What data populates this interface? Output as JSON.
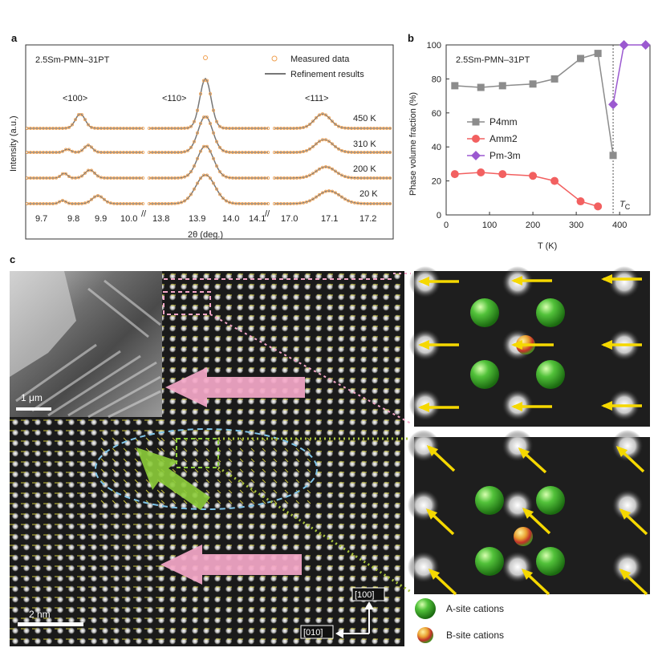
{
  "figure": {
    "panel_a": {
      "letter": "a",
      "sample": "2.5Sm-PMN–31PT",
      "legend_measured": "Measured data",
      "legend_refine": "Refinement results",
      "peaks": [
        "<100>",
        "<110>",
        "<111>"
      ],
      "temps": [
        "450 K",
        "310 K",
        "200 K",
        "20 K"
      ],
      "ylabel": "Intensity (a.u.)",
      "xlabel": "2θ (deg.)",
      "xticks_1": [
        "9.7",
        "9.8",
        "9.9",
        "10.0"
      ],
      "xticks_2": [
        "13.8",
        "13.9",
        "14.0",
        "14.1"
      ],
      "xticks_3": [
        "17.0",
        "17.1",
        "17.2"
      ]
    },
    "panel_b": {
      "letter": "b",
      "sample": "2.5Sm-PMN–31PT",
      "tc_label": "T",
      "tc_sub": "C"
    },
    "panel_c": {
      "letter": "c",
      "scale_inset": "1 μm",
      "scale_main": "2 nm",
      "dir_100": "[100]",
      "dir_010": "[010]",
      "legend_a": "A-site cations",
      "legend_b": "B-site cations"
    }
  },
  "chart_data": {
    "type": "line",
    "title": "",
    "xlabel": "T (K)",
    "ylabel": "Phase volume fraction (%)",
    "xlim": [
      0,
      470
    ],
    "ylim": [
      0,
      100
    ],
    "xticks": [
      0,
      100,
      200,
      300,
      400
    ],
    "yticks": [
      0,
      20,
      40,
      60,
      80,
      100
    ],
    "series": [
      {
        "name": "P4mm",
        "color": "#8c8c8c",
        "marker": "square",
        "x": [
          20,
          80,
          130,
          200,
          250,
          310,
          350,
          385
        ],
        "y": [
          76,
          75,
          76,
          77,
          80,
          92,
          95,
          35
        ]
      },
      {
        "name": "Amm2",
        "color": "#f26060",
        "marker": "circle",
        "x": [
          20,
          80,
          130,
          200,
          250,
          310,
          350
        ],
        "y": [
          24,
          25,
          24,
          23,
          20,
          8,
          5
        ]
      },
      {
        "name": "Pm-3m",
        "color": "#9b59d0",
        "marker": "diamond",
        "x": [
          385,
          410,
          460
        ],
        "y": [
          65,
          100,
          100
        ]
      }
    ],
    "tc": 385
  }
}
